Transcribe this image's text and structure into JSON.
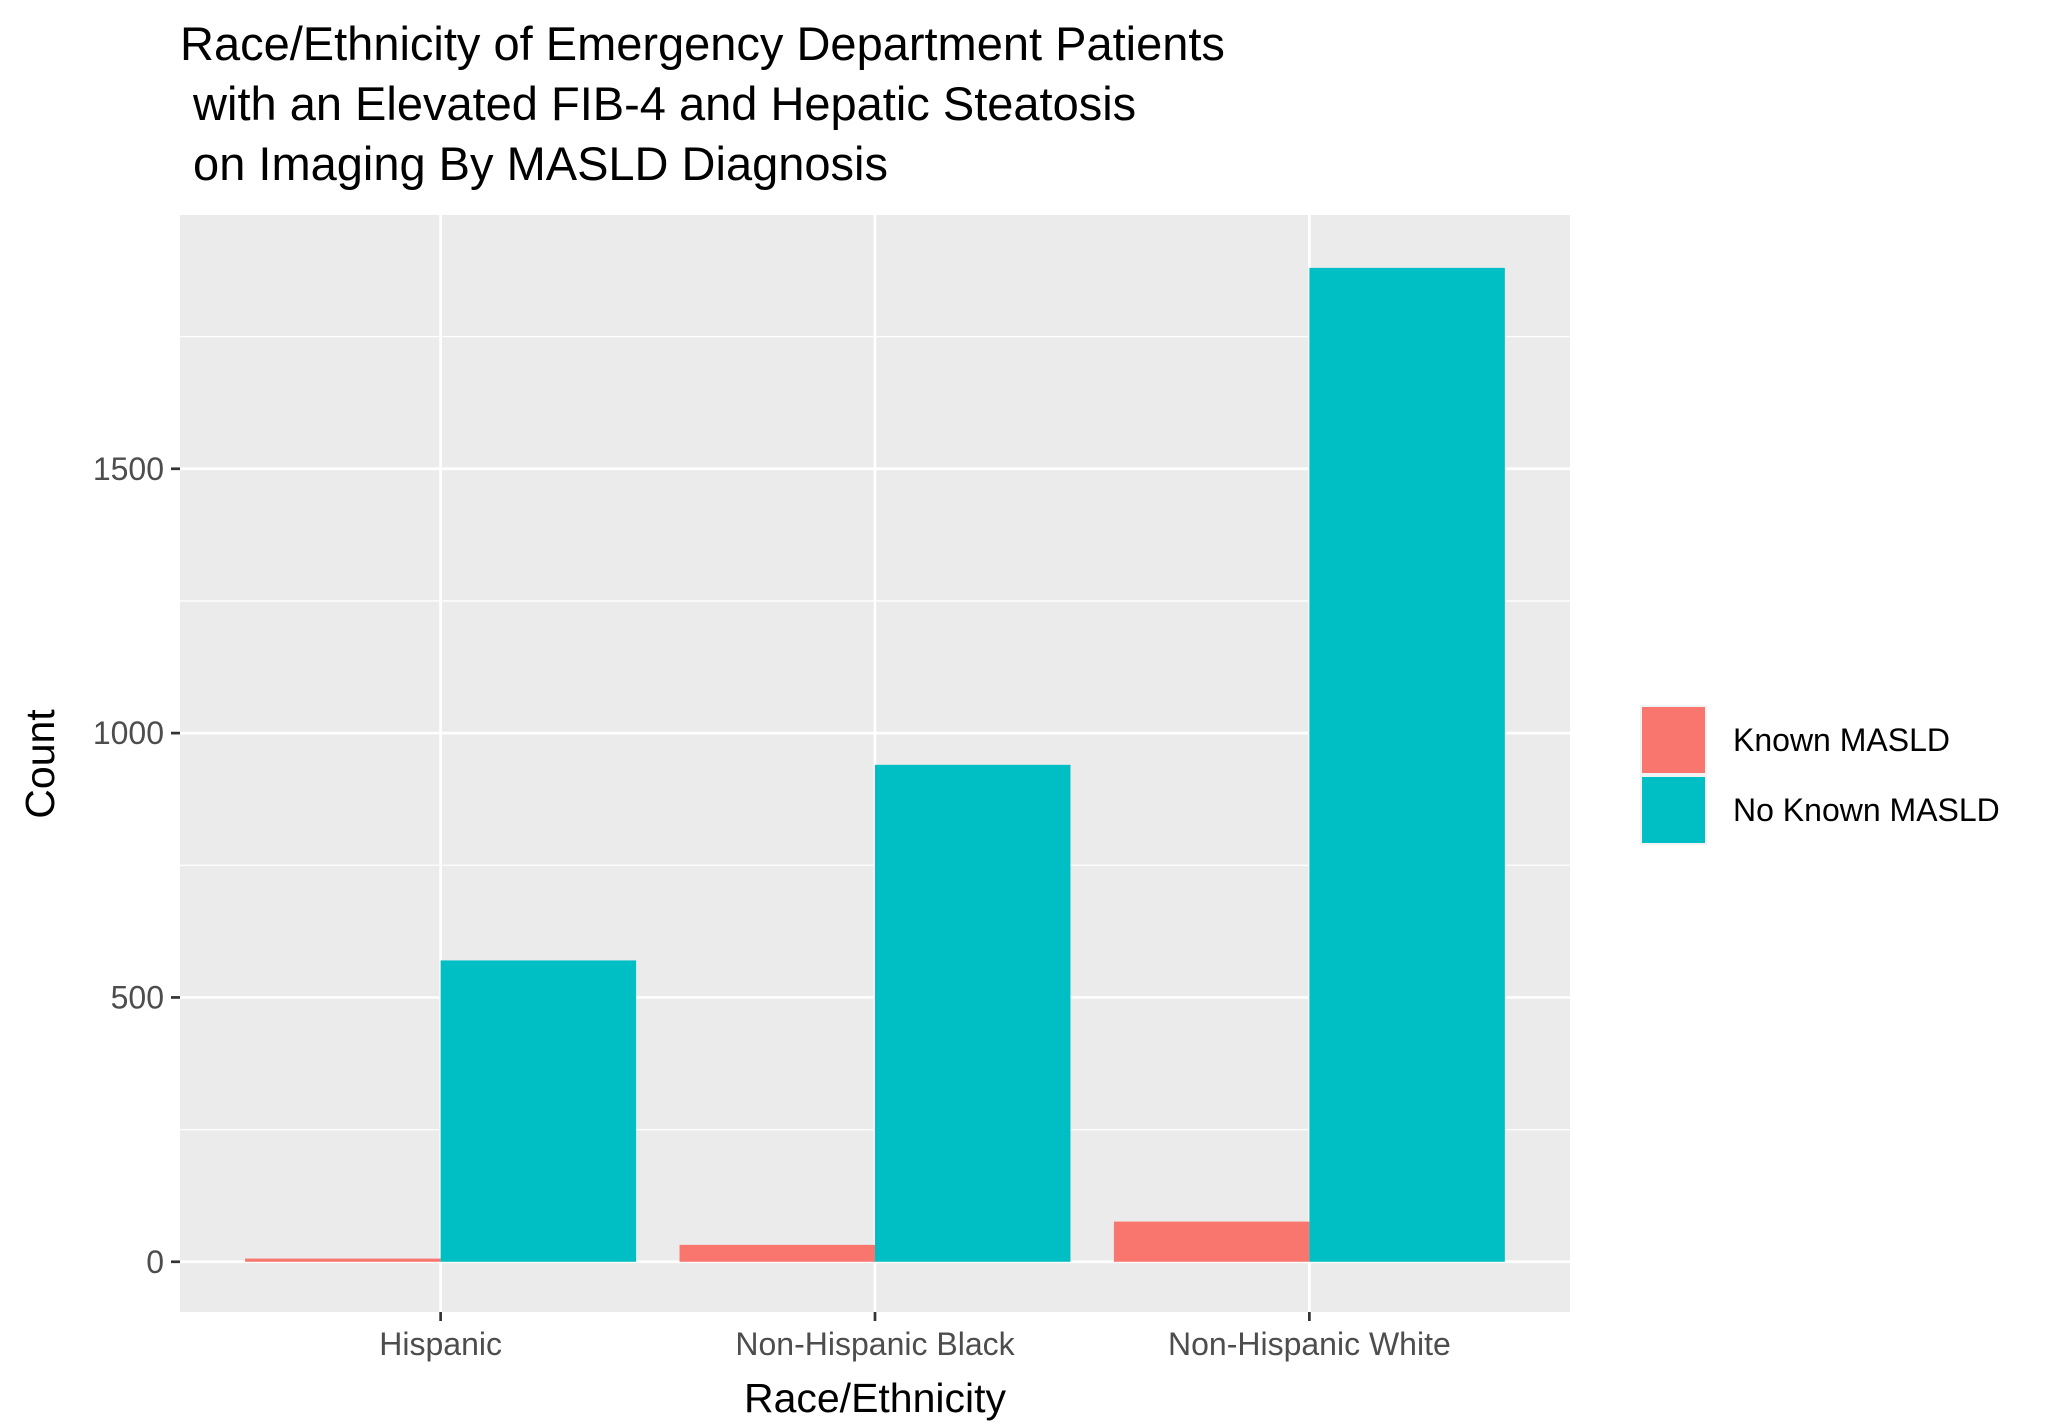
{
  "chart_data": {
    "type": "bar",
    "title_lines": [
      "Race/Ethnicity of Emergency Department Patients",
      " with an Elevated FIB-4 and Hepatic Steatosis",
      " on Imaging By MASLD Diagnosis"
    ],
    "xlabel": "Race/Ethnicity",
    "ylabel": "Count",
    "categories": [
      "Hispanic",
      "Non-Hispanic Black",
      "Non-Hispanic White"
    ],
    "series": [
      {
        "name": "Known MASLD",
        "color": "#F8766D",
        "values": [
          6,
          32,
          76
        ]
      },
      {
        "name": "No Known MASLD",
        "color": "#00BFC4",
        "values": [
          570,
          940,
          1880
        ]
      }
    ],
    "ylim": [
      -95,
      1980
    ],
    "yticks": [
      0,
      500,
      1000,
      1500
    ],
    "ytick_labels": [
      "0",
      "500",
      "1000",
      "1500"
    ],
    "grid": true,
    "legend_position": "right",
    "panel_background": "#EBEBEB",
    "grid_color": "#FFFFFF"
  }
}
